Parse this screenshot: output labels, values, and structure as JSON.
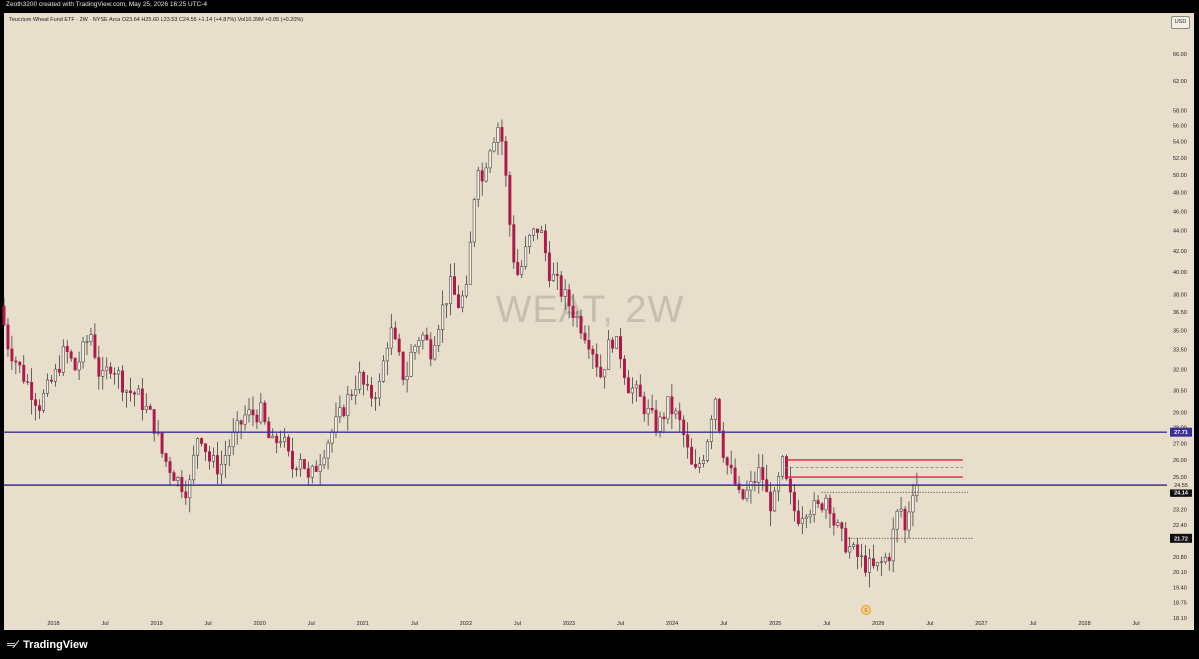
{
  "header": {
    "attribution": "Zeoth3200 created with TradingView.com, May 25, 2026 16:25 UTC-4"
  },
  "legend": {
    "text": "Teucrium Wheat Fund ETF · 2W · NYSE Arca  O23.64  H25.60  L23.53  C24.55  +1.14 (+4.87%)  Vol10.39M  +0.05 (+0.20%)"
  },
  "watermark": "WEAT, 2W",
  "currency_button": "USD",
  "footer": {
    "brand": "TradingView",
    "logo_glyph": "17"
  },
  "colors": {
    "background": "#e7decc",
    "up_candle": "#f4f0e6",
    "down_candle": "#b0184a",
    "support_line": "#3b2f9a",
    "resistance_line": "#e0204a",
    "wick": "#2a2a2a"
  },
  "chart_data": {
    "type": "candlestick",
    "symbol": "WEAT",
    "interval": "2W",
    "log_scale": true,
    "y_ticks": [
      "66.00",
      "62.00",
      "58.00",
      "56.00",
      "54.00",
      "52.00",
      "50.00",
      "48.00",
      "46.00",
      "44.00",
      "42.00",
      "40.00",
      "38.00",
      "36.50",
      "35.00",
      "33.50",
      "32.00",
      "30.50",
      "29.00",
      "28.00",
      "27.00",
      "26.00",
      "25.00",
      "24.00",
      "23.20",
      "22.40",
      "21.60",
      "20.80",
      "20.10",
      "19.40",
      "18.75",
      "18.10"
    ],
    "y_tick_values": [
      66,
      62,
      58,
      56,
      54,
      52,
      50,
      48,
      46,
      44,
      42,
      40,
      38,
      36.5,
      35,
      33.5,
      32,
      30.5,
      29,
      28,
      27,
      26,
      25,
      24,
      23.2,
      22.4,
      21.6,
      20.8,
      20.1,
      19.4,
      18.75,
      18.1
    ],
    "ylim": [
      17.6,
      72.5
    ],
    "x_ticks": [
      "2018",
      "Jul",
      "2019",
      "Jul",
      "2020",
      "Jul",
      "2021",
      "Jul",
      "2022",
      "Jul",
      "2023",
      "Jul",
      "2024",
      "Jul",
      "2025",
      "Jul",
      "2026",
      "Jul",
      "2027",
      "Jul",
      "2028",
      "Jul"
    ],
    "x_tick_years": [
      2018.0,
      2018.5,
      2019.0,
      2019.5,
      2020.0,
      2020.5,
      2021.0,
      2021.5,
      2022.0,
      2022.5,
      2023.0,
      2023.5,
      2024.0,
      2024.5,
      2025.0,
      2025.5,
      2026.0,
      2026.5,
      2027.0,
      2027.5,
      2028.0,
      2028.5
    ],
    "xlim": [
      2017.52,
      2028.8
    ],
    "anchors": [
      [
        2017.52,
        37.0
      ],
      [
        2017.6,
        33.8
      ],
      [
        2017.75,
        31.5
      ],
      [
        2017.9,
        29.5
      ],
      [
        2018.05,
        31.5
      ],
      [
        2018.15,
        33.5
      ],
      [
        2018.25,
        32.0
      ],
      [
        2018.4,
        34.8
      ],
      [
        2018.5,
        31.0
      ],
      [
        2018.6,
        32.5
      ],
      [
        2018.75,
        30.5
      ],
      [
        2018.85,
        30.2
      ],
      [
        2019.0,
        28.5
      ],
      [
        2019.1,
        26.2
      ],
      [
        2019.25,
        24.8
      ],
      [
        2019.35,
        24.2
      ],
      [
        2019.45,
        28.0
      ],
      [
        2019.55,
        26.0
      ],
      [
        2019.65,
        25.5
      ],
      [
        2019.75,
        27.0
      ],
      [
        2019.9,
        28.8
      ],
      [
        2020.05,
        29.0
      ],
      [
        2020.15,
        26.8
      ],
      [
        2020.25,
        27.5
      ],
      [
        2020.35,
        25.5
      ],
      [
        2020.45,
        26.5
      ],
      [
        2020.5,
        24.6
      ],
      [
        2020.6,
        25.8
      ],
      [
        2020.7,
        27.2
      ],
      [
        2020.8,
        28.5
      ],
      [
        2020.9,
        30.0
      ],
      [
        2021.0,
        31.5
      ],
      [
        2021.1,
        30.0
      ],
      [
        2021.2,
        30.8
      ],
      [
        2021.3,
        35.2
      ],
      [
        2021.4,
        32.5
      ],
      [
        2021.45,
        31.0
      ],
      [
        2021.5,
        33.0
      ],
      [
        2021.6,
        34.8
      ],
      [
        2021.7,
        33.5
      ],
      [
        2021.8,
        36.5
      ],
      [
        2021.9,
        39.0
      ],
      [
        2021.95,
        37.0
      ],
      [
        2022.05,
        38.2
      ],
      [
        2022.15,
        52.0
      ],
      [
        2022.2,
        49.0
      ],
      [
        2022.25,
        53.0
      ],
      [
        2022.35,
        56.0
      ],
      [
        2022.4,
        53.5
      ],
      [
        2022.45,
        46.0
      ],
      [
        2022.5,
        41.5
      ],
      [
        2022.55,
        39.5
      ],
      [
        2022.65,
        43.0
      ],
      [
        2022.75,
        44.5
      ],
      [
        2022.85,
        40.0
      ],
      [
        2022.95,
        38.5
      ],
      [
        2023.05,
        37.0
      ],
      [
        2023.15,
        35.5
      ],
      [
        2023.25,
        34.0
      ],
      [
        2023.35,
        31.5
      ],
      [
        2023.45,
        34.5
      ],
      [
        2023.55,
        33.0
      ],
      [
        2023.6,
        31.0
      ],
      [
        2023.7,
        30.2
      ],
      [
        2023.8,
        29.0
      ],
      [
        2023.9,
        28.0
      ],
      [
        2024.0,
        29.5
      ],
      [
        2024.1,
        28.5
      ],
      [
        2024.15,
        27.5
      ],
      [
        2024.2,
        26.2
      ],
      [
        2024.25,
        25.0
      ],
      [
        2024.35,
        26.5
      ],
      [
        2024.4,
        28.0
      ],
      [
        2024.45,
        30.5
      ],
      [
        2024.5,
        28.0
      ],
      [
        2024.55,
        26.0
      ],
      [
        2024.65,
        24.6
      ],
      [
        2024.7,
        23.6
      ],
      [
        2024.8,
        24.4
      ],
      [
        2024.9,
        25.5
      ],
      [
        2024.95,
        24.0
      ],
      [
        2025.0,
        23.5
      ],
      [
        2025.05,
        23.8
      ],
      [
        2025.1,
        26.0
      ],
      [
        2025.15,
        24.5
      ],
      [
        2025.2,
        23.5
      ],
      [
        2025.25,
        22.8
      ],
      [
        2025.35,
        23.4
      ],
      [
        2025.45,
        23.2
      ],
      [
        2025.55,
        24.1
      ],
      [
        2025.6,
        22.6
      ],
      [
        2025.7,
        21.6
      ],
      [
        2025.8,
        21.0
      ],
      [
        2025.9,
        20.5
      ],
      [
        2026.0,
        20.2
      ],
      [
        2026.05,
        20.4
      ],
      [
        2026.15,
        21.0
      ],
      [
        2026.2,
        22.5
      ],
      [
        2026.25,
        23.5
      ],
      [
        2026.3,
        22.0
      ],
      [
        2026.35,
        23.8
      ],
      [
        2026.38,
        24.55
      ]
    ],
    "levels": [
      {
        "price": 27.71,
        "style": "solid",
        "color": "support",
        "x_from": 2017.52,
        "x_to": "end",
        "tag": "27.71"
      },
      {
        "price": 24.54,
        "style": "solid",
        "color": "support",
        "x_from": 2017.52,
        "x_to": "end",
        "tag": "24.54"
      },
      {
        "price": 26.0,
        "style": "solid",
        "color": "resistance",
        "x_from": 2025.1,
        "x_to": 2026.82
      },
      {
        "price": 25.0,
        "style": "solid",
        "color": "resistance",
        "x_from": 2025.1,
        "x_to": 2026.82
      },
      {
        "price": 25.55,
        "style": "dashed",
        "color": "grey",
        "x_from": 2025.1,
        "x_to": 2026.82
      },
      {
        "price": 24.14,
        "style": "dotted",
        "color": "dark",
        "x_from": 2025.45,
        "x_to": 2026.87,
        "tag": "24.14"
      },
      {
        "price": 21.72,
        "style": "dotted",
        "color": "dark",
        "x_from": 2025.68,
        "x_to": 2026.93,
        "tag": "21.72"
      }
    ],
    "last_price_label": "24.55",
    "session_low_tag": "24.14",
    "pivot_tag": "21.72"
  }
}
